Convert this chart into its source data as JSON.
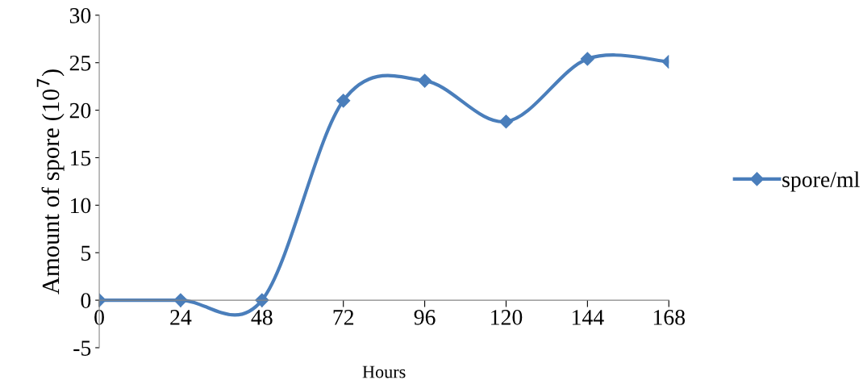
{
  "chart_data": {
    "type": "line",
    "xlabel": "Hours",
    "ylabel": "Amount of spore (10$^{7}$)",
    "categories": [
      "0",
      "24",
      "48",
      "72",
      "96",
      "120",
      "144",
      "168"
    ],
    "series": [
      {
        "name": "spore/ml",
        "color": "#4a7ebb",
        "values": [
          0,
          0,
          0,
          21,
          23.1,
          18.8,
          25.4,
          25.1
        ]
      }
    ],
    "ylim": [
      -5,
      30
    ],
    "yticks": [
      -5,
      0,
      5,
      10,
      15,
      20,
      25,
      30
    ],
    "grid": false,
    "legend": "right",
    "marker": "diamond",
    "line_style": "solid"
  }
}
